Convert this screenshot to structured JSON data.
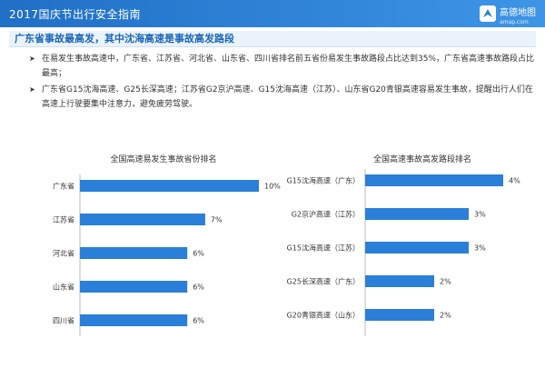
{
  "header": {
    "title": "2017国庆节出行安全指南",
    "logo_name": "高德地图",
    "logo_url": "amap.com"
  },
  "section": {
    "title": "广东省事故最高发，其中沈海高速是事故高发路段"
  },
  "bullets": [
    "在易发生事故高速中，广东省、江苏省、河北省、山东省、四川省排名前五省份易发生事故路段占比达到35%，广东省高速事故路段占比最高；",
    "广东省G15沈海高速、G25长深高速；江苏省G2京沪高速、G15沈海高速（江苏）、山东省G20青银高速容易发生事故，提醒出行人们在高速上行驶要集中注意力，避免疲劳驾驶。"
  ],
  "chart_data": [
    {
      "type": "bar",
      "orientation": "horizontal",
      "title": "全国高速易发生事故省份排名",
      "categories": [
        "广东省",
        "江苏省",
        "河北省",
        "山东省",
        "四川省"
      ],
      "values": [
        10,
        7,
        6,
        6,
        6
      ],
      "value_labels": [
        "10%",
        "7%",
        "6%",
        "6%",
        "6%"
      ],
      "unit": "%",
      "xlim": [
        0,
        10
      ],
      "grid": false,
      "color": "#2a7fd8"
    },
    {
      "type": "bar",
      "orientation": "horizontal",
      "title": "全国高速事故高发路段排名",
      "categories": [
        "G15沈海高速（广东）",
        "G2京沪高速（江苏）",
        "G15沈海高速（江苏）",
        "G25长深高速（广东）",
        "G20青银高速（山东）"
      ],
      "values": [
        4,
        3,
        3,
        2,
        2
      ],
      "value_labels": [
        "4%",
        "3%",
        "3%",
        "2%",
        "2%"
      ],
      "unit": "%",
      "xlim": [
        0,
        4
      ],
      "grid": false,
      "color": "#2a7fd8"
    }
  ]
}
